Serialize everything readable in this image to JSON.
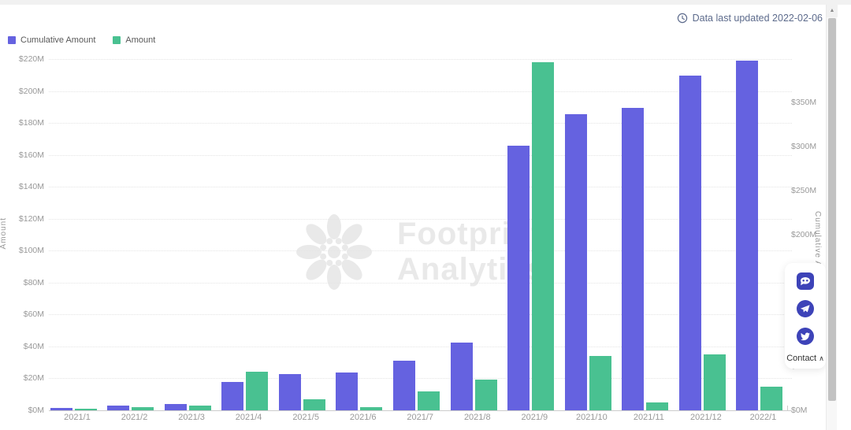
{
  "header": {
    "updated_text": "Data last updated 2022-02-06"
  },
  "legend": {
    "cumulative": {
      "label": "Cumulative Amount",
      "color": "#6562e0"
    },
    "amount": {
      "label": "Amount",
      "color": "#49c191"
    }
  },
  "watermark": {
    "line1": "Footprint",
    "line2": "Analytics"
  },
  "side_widget": {
    "icons": [
      "discord-icon",
      "telegram-icon",
      "twitter-icon"
    ],
    "icon_color": "#3d43b8",
    "contact_label": "Contact",
    "chevron": "∧"
  },
  "scrollbar": {
    "up_glyph": "▲"
  },
  "chart_data": {
    "type": "bar",
    "title": "",
    "categories": [
      "2021/1",
      "2021/2",
      "2021/3",
      "2021/4",
      "2021/5",
      "2021/6",
      "2021/7",
      "2021/8",
      "2021/9",
      "2021/10",
      "2021/11",
      "2021/12",
      "2022/1"
    ],
    "series": [
      {
        "name": "Cumulative Amount",
        "axis": "right",
        "color": "#6562e0",
        "values": [
          3,
          5,
          7,
          32,
          41,
          43,
          56,
          77,
          301,
          337,
          344,
          380,
          397
        ]
      },
      {
        "name": "Amount",
        "axis": "left",
        "color": "#49c191",
        "values": [
          1,
          2,
          3,
          24,
          7,
          2,
          12,
          19,
          218,
          34,
          5,
          35,
          15
        ]
      }
    ],
    "left_axis": {
      "title": "Amount",
      "unit_prefix": "$",
      "unit_suffix": "M",
      "min": 0,
      "max": 220,
      "step": 20
    },
    "right_axis": {
      "title": "Cumulative Amount",
      "unit_prefix": "$",
      "unit_suffix": "M",
      "min": 0,
      "max": 350,
      "step": 50
    },
    "grid": true,
    "legend_position": "top-left"
  }
}
